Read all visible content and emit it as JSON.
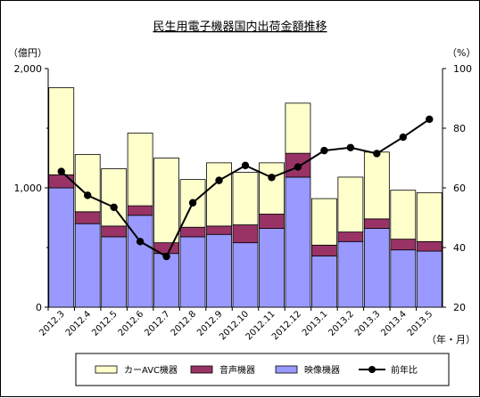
{
  "chart_data": {
    "type": "bar",
    "title": "民生用電子機器国内出荷金額推移",
    "y_left_unit": "（億円）",
    "y_right_unit": "（%）",
    "x_unit": "（年・月）",
    "categories": [
      "2012.3",
      "2012.4",
      "2012.5",
      "2012.6",
      "2012.7",
      "2012.8",
      "2012.9",
      "2012.10",
      "2012.11",
      "2012.12",
      "2013.1",
      "2013.2",
      "2013.3",
      "2013.4",
      "2013.5"
    ],
    "y_left": {
      "min": 0,
      "max": 2000,
      "ticks": [
        "0",
        "1,000",
        "2,000"
      ]
    },
    "y_right": {
      "min": 20,
      "max": 100,
      "ticks": [
        "20",
        "40",
        "60",
        "80",
        "100"
      ]
    },
    "series": [
      {
        "name": "映像機器",
        "kind": "bar",
        "color": "#9999ff",
        "values": [
          1000,
          700,
          590,
          770,
          450,
          590,
          610,
          540,
          660,
          1090,
          430,
          550,
          660,
          480,
          470
        ]
      },
      {
        "name": "音声機器",
        "kind": "bar",
        "color": "#993366",
        "values": [
          110,
          100,
          90,
          80,
          90,
          80,
          70,
          150,
          120,
          200,
          90,
          80,
          80,
          90,
          80
        ]
      },
      {
        "name": "カーAVC機器",
        "kind": "bar",
        "color": "#ffffcc",
        "values": [
          730,
          480,
          480,
          610,
          710,
          400,
          530,
          440,
          430,
          420,
          390,
          460,
          560,
          410,
          410
        ]
      },
      {
        "name": "前年比",
        "kind": "line",
        "axis": "right",
        "color": "#000000",
        "values": [
          65.5,
          57.5,
          53.5,
          42,
          37,
          55,
          62.5,
          67.5,
          63.5,
          67,
          72.5,
          73.5,
          71.5,
          77,
          83
        ]
      }
    ],
    "legend": {
      "placement": "bottom",
      "order": [
        "カーAVC機器",
        "音声機器",
        "映像機器",
        "前年比"
      ]
    },
    "grid": false
  }
}
